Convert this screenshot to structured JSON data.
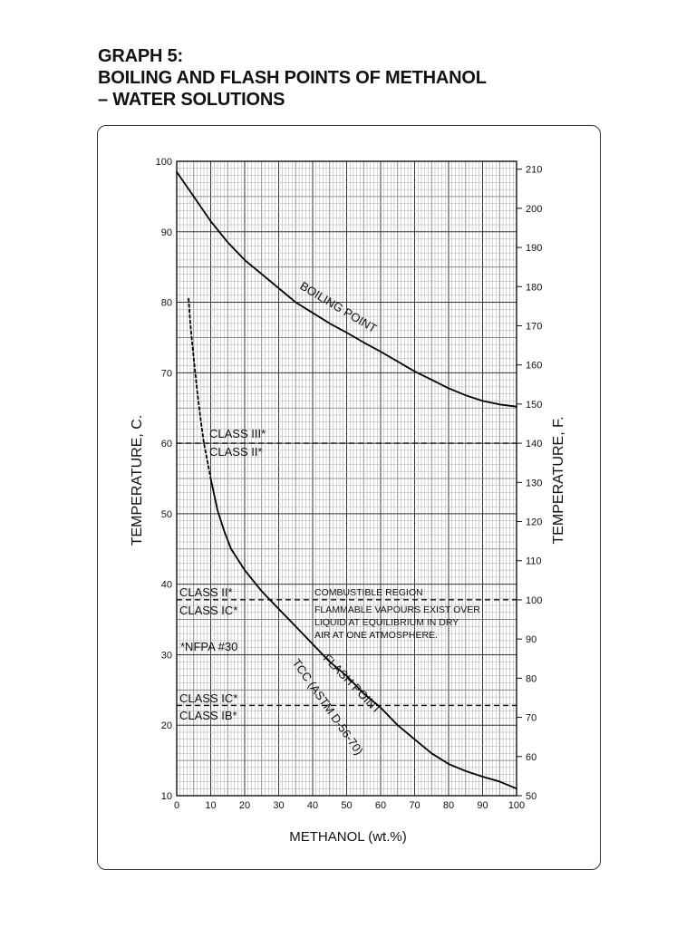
{
  "title": {
    "line1": "GRAPH 5:",
    "line2": "BOILING AND FLASH POINTS OF METHANOL",
    "line3": "– WATER SOLUTIONS"
  },
  "chart_data": {
    "type": "line",
    "xlabel": "METHANOL (wt.%)",
    "ylabel_left": "TEMPERATURE, C.",
    "ylabel_right": "TEMPERATURE, F.",
    "xlim": [
      0,
      100
    ],
    "ylim_c": [
      10,
      100
    ],
    "ylim_f": [
      50,
      212
    ],
    "x_ticks": [
      "0",
      "10",
      "20",
      "30",
      "40",
      "50",
      "60",
      "70",
      "80",
      "90",
      "100"
    ],
    "x_tick_values": [
      0,
      10,
      20,
      30,
      40,
      50,
      60,
      70,
      80,
      90,
      100
    ],
    "y_ticks_c": [
      "10",
      "20",
      "30",
      "40",
      "50",
      "60",
      "70",
      "80",
      "90",
      "100"
    ],
    "y_tick_values_c": [
      10,
      20,
      30,
      40,
      50,
      60,
      70,
      80,
      90,
      100
    ],
    "y_ticks_f": [
      "50",
      "60",
      "70",
      "80",
      "90",
      "100",
      "110",
      "120",
      "130",
      "140",
      "150",
      "160",
      "170",
      "180",
      "190",
      "200",
      "210"
    ],
    "y_tick_values_f": [
      50,
      60,
      70,
      80,
      90,
      100,
      110,
      120,
      130,
      140,
      150,
      160,
      170,
      180,
      190,
      200,
      210
    ],
    "grid": true,
    "series": [
      {
        "name": "BOILING POINT",
        "style": "solid",
        "x": [
          0,
          5,
          10,
          15,
          20,
          25,
          30,
          35,
          40,
          45,
          50,
          55,
          60,
          65,
          70,
          75,
          80,
          85,
          90,
          95,
          100
        ],
        "y": [
          98.5,
          95.0,
          91.5,
          88.5,
          86.0,
          84.0,
          82.0,
          80.0,
          78.5,
          77.0,
          75.7,
          74.3,
          73.0,
          71.6,
          70.2,
          69.0,
          67.8,
          66.8,
          66.0,
          65.5,
          65.2
        ]
      },
      {
        "name": "FLASH POINT TCC (ASTM D-56-70)",
        "style": "dashed",
        "x": [
          3.5,
          4.0,
          5.0,
          6.0,
          7.0,
          8.0,
          9.0,
          10.0
        ],
        "y": [
          80.5,
          77.0,
          72.0,
          67.5,
          63.5,
          60.0,
          57.5,
          55.0
        ]
      },
      {
        "name": "FLASH POINT TCC (ASTM D-56-70)",
        "style": "solid",
        "x": [
          10,
          12,
          14,
          16,
          18,
          20,
          25,
          30,
          35,
          40,
          45,
          50,
          55,
          60,
          65,
          70,
          75,
          80,
          85,
          90,
          95,
          100
        ],
        "y": [
          55.0,
          50.5,
          47.5,
          45.0,
          43.5,
          42.0,
          39.0,
          36.5,
          34.0,
          31.5,
          29.0,
          27.0,
          24.5,
          22.5,
          20.0,
          18.0,
          16.0,
          14.5,
          13.5,
          12.7,
          12.0,
          11.0
        ]
      }
    ],
    "reference_lines": [
      {
        "y": 60,
        "style": "dashed",
        "label_above": "CLASS III*",
        "label_below": "CLASS II*"
      },
      {
        "y": 37.8,
        "style": "dashed",
        "label_above": "CLASS II*",
        "label_below": "CLASS IC*"
      },
      {
        "y": 22.8,
        "style": "dashed",
        "label_above": "CLASS IC*",
        "label_below": "CLASS IB*"
      }
    ],
    "annotations": {
      "combustible": "COMBUSTIBLE REGION",
      "flammable_1": "FLAMMABLE VAPOURS EXIST OVER",
      "flammable_2": "LIQUID AT EQUILIBRIUM IN DRY",
      "flammable_3": "AIR AT ONE ATMOSPHERE.",
      "nfpa": "*NFPA #30",
      "boiling_label": "BOILING POINT",
      "flash_label_1": "FLASH POINT",
      "flash_label_2": "TCC (ASTM D-56-70)"
    }
  }
}
